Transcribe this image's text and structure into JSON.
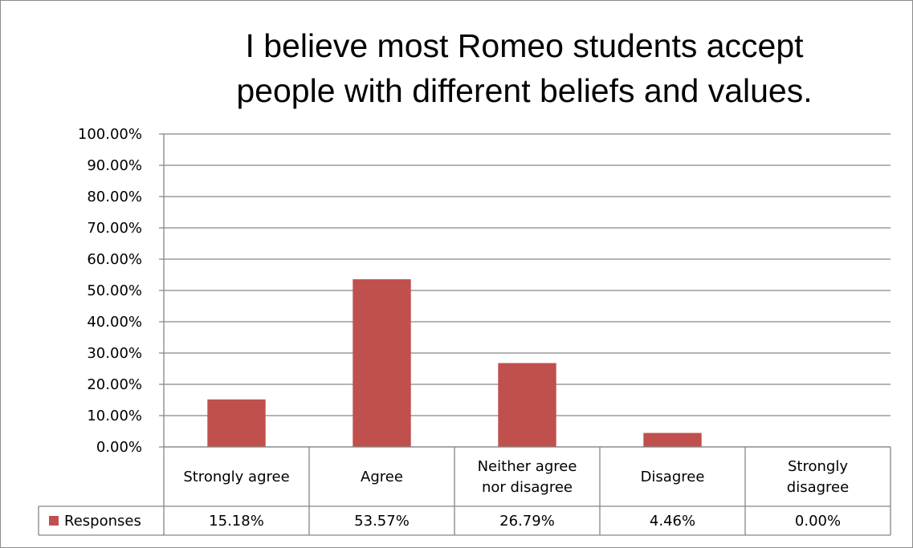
{
  "chart_data": {
    "type": "bar",
    "title_lines": [
      "I believe most Romeo students accept",
      "people with different beliefs and values."
    ],
    "categories": [
      [
        "Strongly agree"
      ],
      [
        "Agree"
      ],
      [
        "Neither agree",
        "nor disagree"
      ],
      [
        "Disagree"
      ],
      [
        "Strongly",
        "disagree"
      ]
    ],
    "series": [
      {
        "name": "Responses",
        "values": [
          15.18,
          53.57,
          26.79,
          4.46,
          0.0
        ],
        "value_labels": [
          "15.18%",
          "53.57%",
          "26.79%",
          "4.46%",
          "0.00%"
        ],
        "color": "#c0504d"
      }
    ],
    "y_ticks": [
      "0.00%",
      "10.00%",
      "20.00%",
      "30.00%",
      "40.00%",
      "50.00%",
      "60.00%",
      "70.00%",
      "80.00%",
      "90.00%",
      "100.00%"
    ],
    "ylim": [
      0,
      100
    ],
    "grid": true,
    "data_table": true,
    "legend": "data-table"
  }
}
